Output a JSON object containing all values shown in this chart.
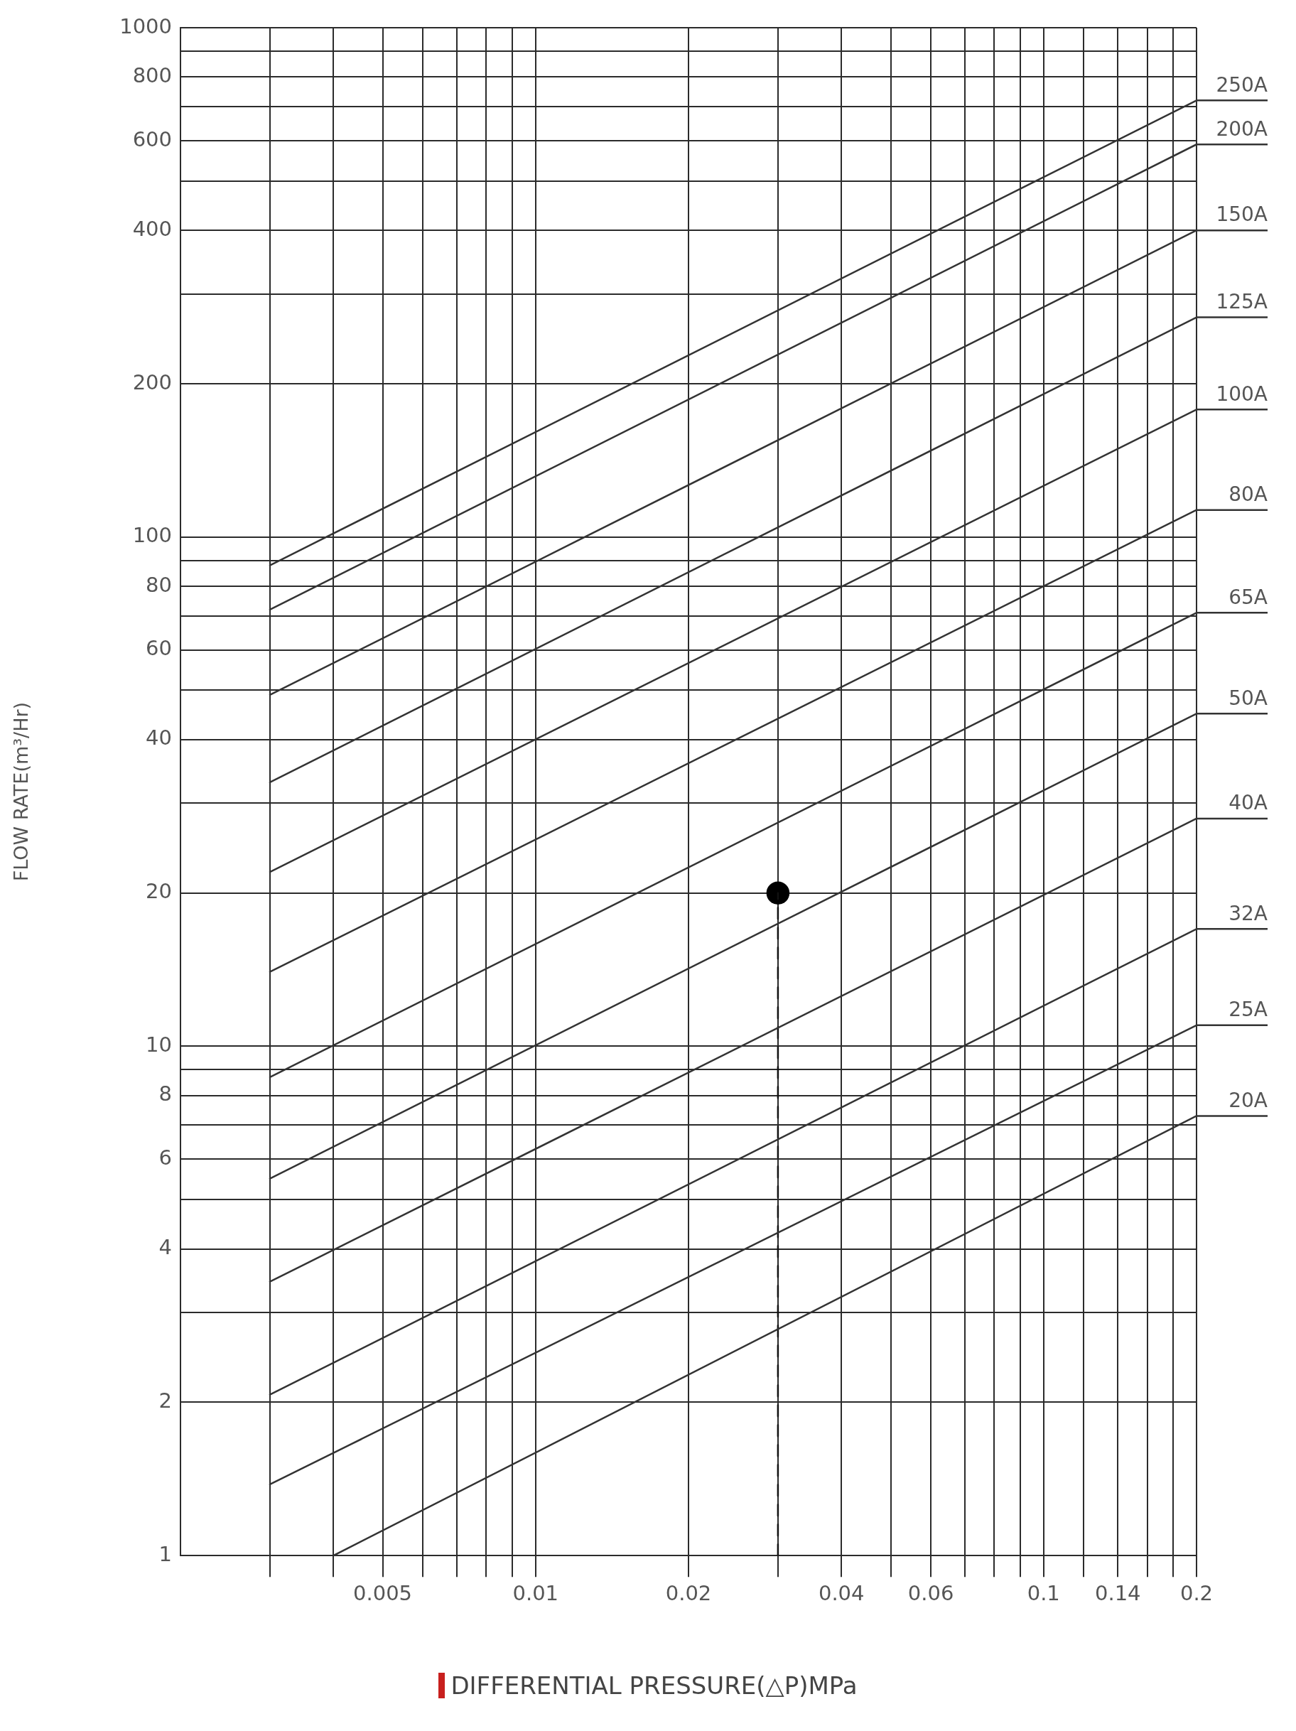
{
  "chart_data": {
    "type": "line",
    "xlabel": "DIFFERENTIAL PRESSURE(△P)MPa",
    "ylabel": "FLOW RATE(m³/Hr)",
    "log": "xy",
    "grid": true,
    "legend": "right",
    "marker": "none",
    "line_style": "solid",
    "xlim": [
      0.002,
      0.2
    ],
    "ylim": [
      1,
      1000
    ],
    "xticks": [
      {
        "value": 0.003,
        "label": null
      },
      {
        "value": 0.004,
        "label": null
      },
      0.005,
      {
        "value": 0.006,
        "label": null
      },
      {
        "value": 0.007,
        "label": null
      },
      {
        "value": 0.008,
        "label": null
      },
      {
        "value": 0.009,
        "label": null
      },
      0.01,
      0.02,
      {
        "value": 0.03,
        "label": null
      },
      0.04,
      {
        "value": 0.05,
        "label": null
      },
      0.06,
      {
        "value": 0.07,
        "label": null
      },
      {
        "value": 0.08,
        "label": null
      },
      {
        "value": 0.09,
        "label": null
      },
      0.1,
      {
        "value": 0.12,
        "label": null
      },
      0.14,
      {
        "value": 0.16,
        "label": null
      },
      {
        "value": 0.18,
        "label": null
      },
      0.2
    ],
    "yticks": [
      1,
      2,
      {
        "value": 3,
        "label": null
      },
      4,
      {
        "value": 5,
        "label": null
      },
      6,
      {
        "value": 7,
        "label": null
      },
      8,
      {
        "value": 9,
        "label": null
      },
      10,
      20,
      {
        "value": 30,
        "label": null
      },
      40,
      {
        "value": 50,
        "label": null
      },
      60,
      {
        "value": 70,
        "label": null
      },
      80,
      {
        "value": 90,
        "label": null
      },
      100,
      200,
      {
        "value": 300,
        "label": null
      },
      400,
      {
        "value": 500,
        "label": null
      },
      600,
      {
        "value": 700,
        "label": null
      },
      800,
      {
        "value": 900,
        "label": null
      },
      1000
    ],
    "series": [
      {
        "name": "250A",
        "color": "#333333",
        "x": [
          0.003,
          0.2
        ],
        "values": [
          88,
          720
        ]
      },
      {
        "name": "200A",
        "color": "#333333",
        "x": [
          0.003,
          0.2
        ],
        "values": [
          72,
          590
        ]
      },
      {
        "name": "150A",
        "color": "#333333",
        "x": [
          0.003,
          0.2
        ],
        "values": [
          49,
          400
        ]
      },
      {
        "name": "125A",
        "color": "#333333",
        "x": [
          0.003,
          0.2
        ],
        "values": [
          33,
          270
        ]
      },
      {
        "name": "100A",
        "color": "#333333",
        "x": [
          0.003,
          0.2
        ],
        "values": [
          22,
          178
        ]
      },
      {
        "name": "80A",
        "color": "#333333",
        "x": [
          0.003,
          0.2
        ],
        "values": [
          14,
          113
        ]
      },
      {
        "name": "65A",
        "color": "#333333",
        "x": [
          0.003,
          0.2
        ],
        "values": [
          8.7,
          71
        ]
      },
      {
        "name": "50A",
        "color": "#333333",
        "x": [
          0.003,
          0.2
        ],
        "values": [
          5.5,
          45
        ]
      },
      {
        "name": "40A",
        "color": "#333333",
        "x": [
          0.003,
          0.2
        ],
        "values": [
          3.45,
          28
        ]
      },
      {
        "name": "32A",
        "color": "#333333",
        "x": [
          0.003,
          0.2
        ],
        "values": [
          2.07,
          17
        ]
      },
      {
        "name": "25A",
        "color": "#333333",
        "x": [
          0.003,
          0.2
        ],
        "values": [
          1.38,
          11
        ]
      },
      {
        "name": "20A",
        "color": "#333333",
        "x": [
          0.004,
          0.2
        ],
        "values": [
          1,
          7.3
        ]
      },
      {
        "type": "line",
        "line_style": "dashed",
        "color": "#111111",
        "x": [
          0.03,
          0.03
        ],
        "values": [
          1,
          20
        ]
      },
      {
        "type": "scatter",
        "marker": "circle",
        "color": "#000000",
        "x": [
          0.03
        ],
        "values": [
          20
        ]
      }
    ]
  }
}
